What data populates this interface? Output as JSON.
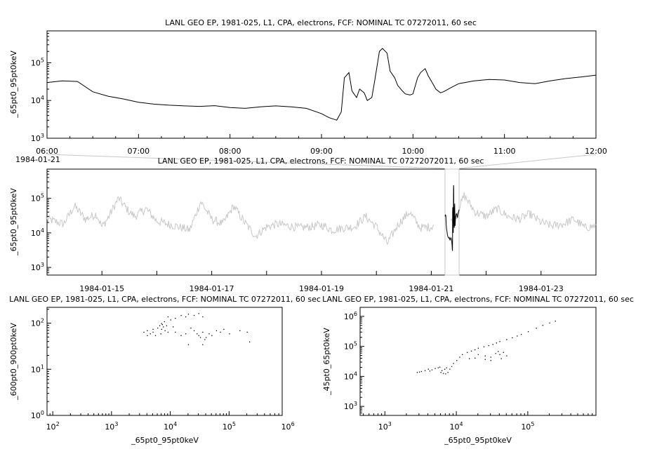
{
  "chart_data": [
    {
      "id": "top",
      "type": "line",
      "title": "LANL GEO EP, 1981-025, L1, CPA, electrons, FCF: NOMINAL TC 07272011, 60 sec",
      "ylabel": "_65pt0_95pt0keV",
      "xlabel": "",
      "x_scale": "time",
      "y_scale": "log",
      "xlim": [
        "1984-01-21 06:00",
        "1984-01-21 12:00"
      ],
      "ylim": [
        1000,
        700000
      ],
      "x_ticks": [
        "06:00",
        "07:00",
        "08:00",
        "09:00",
        "10:00",
        "11:00",
        "12:00"
      ],
      "x_tick_caption": "1984-01-21",
      "y_ticks": [
        {
          "v": 1000,
          "label": "10",
          "sup": "3"
        },
        {
          "v": 10000,
          "label": "10",
          "sup": "4"
        },
        {
          "v": 100000,
          "label": "10",
          "sup": "5"
        }
      ],
      "grid": false,
      "color": "#000000",
      "series": [
        {
          "x": [
            "06:00",
            "06:10",
            "06:20",
            "06:30",
            "06:40",
            "06:50",
            "07:00",
            "07:10",
            "07:20",
            "07:30",
            "07:40",
            "07:50",
            "08:00",
            "08:10",
            "08:20",
            "08:30",
            "08:40",
            "08:50",
            "09:00",
            "09:05",
            "09:10",
            "09:13",
            "09:15",
            "09:18",
            "09:20",
            "09:23",
            "09:25",
            "09:28",
            "09:30",
            "09:33",
            "09:35",
            "09:38",
            "09:40",
            "09:43",
            "09:45",
            "09:48",
            "09:50",
            "09:53",
            "09:55",
            "09:58",
            "10:00",
            "10:03",
            "10:05",
            "10:08",
            "10:10",
            "10:13",
            "10:15",
            "10:18",
            "10:20",
            "10:25",
            "10:30",
            "10:40",
            "10:50",
            "11:00",
            "11:10",
            "11:20",
            "11:30",
            "11:40",
            "11:50",
            "12:00"
          ],
          "values": [
            30000,
            33000,
            32000,
            17000,
            13000,
            11000,
            9000,
            8000,
            7500,
            7200,
            7000,
            7300,
            6500,
            6200,
            6800,
            7200,
            6800,
            6200,
            4500,
            3500,
            3000,
            5000,
            40000,
            55000,
            18000,
            12000,
            20000,
            16000,
            10000,
            12000,
            35000,
            200000,
            240000,
            180000,
            60000,
            40000,
            25000,
            18000,
            15000,
            14000,
            15000,
            40000,
            55000,
            70000,
            45000,
            28000,
            20000,
            16000,
            17000,
            22000,
            28000,
            33000,
            36000,
            35000,
            30000,
            28000,
            33000,
            38000,
            42000,
            47000
          ]
        }
      ]
    },
    {
      "id": "middle",
      "type": "line",
      "title": "LANL GEO EP, 1981-025, L1, CPA, electrons, FCF: NOMINAL TC 07272072011, 60 sec",
      "ylabel": "_65pt0_95pt0keV",
      "xlabel": "",
      "x_scale": "time",
      "y_scale": "log",
      "xlim": [
        "1984-01-14",
        "1984-01-24"
      ],
      "ylim": [
        600,
        700000
      ],
      "x_ticks": [
        "1984-01-15",
        "1984-01-17",
        "1984-01-19",
        "1984-01-21",
        "1984-01-23"
      ],
      "y_ticks": [
        {
          "v": 1000,
          "label": "10",
          "sup": "3"
        },
        {
          "v": 10000,
          "label": "10",
          "sup": "4"
        },
        {
          "v": 100000,
          "label": "10",
          "sup": "5"
        }
      ],
      "grid": false,
      "color": "#c8c8c8",
      "highlight_color": "#000000",
      "highlight_range": [
        "1984-01-21 06:00",
        "1984-01-21 12:00"
      ],
      "series": [
        {
          "x_days": [
            0.0,
            0.3,
            0.5,
            0.7,
            0.9,
            1.0,
            1.1,
            1.3,
            1.5,
            1.6,
            1.8,
            2.0,
            2.2,
            2.4,
            2.6,
            2.8,
            3.0,
            3.2,
            3.4,
            3.6,
            3.8,
            4.0,
            4.2,
            4.4,
            4.6,
            4.8,
            5.0,
            5.2,
            5.4,
            5.6,
            5.8,
            6.0,
            6.2,
            6.4,
            6.6,
            6.8,
            7.0,
            7.2,
            7.4,
            7.6,
            7.8,
            8.0,
            8.2,
            8.4,
            8.6,
            8.8,
            9.0,
            9.2,
            9.4,
            9.6,
            9.8,
            10.0
          ],
          "values": [
            25000,
            18000,
            60000,
            25000,
            35000,
            15000,
            25000,
            100000,
            40000,
            30000,
            50000,
            22000,
            18000,
            15000,
            12000,
            80000,
            25000,
            18000,
            60000,
            20000,
            8000,
            15000,
            18000,
            16000,
            14000,
            15000,
            17000,
            12000,
            14000,
            15000,
            30000,
            15000,
            5000,
            18000,
            40000,
            14000,
            15000,
            30000,
            20000,
            120000,
            40000,
            30000,
            50000,
            30000,
            25000,
            35000,
            20000,
            16000,
            18000,
            25000,
            14000,
            16000
          ]
        }
      ]
    },
    {
      "id": "bottom-left",
      "type": "scatter",
      "title": "LANL GEO EP, 1981-025, L1, CPA, electrons, FCF: NOMINAL TC 07272011, 60 sec",
      "xlabel": "_65pt0_95pt0keV",
      "ylabel": "_600pt0_900pt0keV",
      "x_scale": "log",
      "y_scale": "log",
      "xlim": [
        80,
        800000
      ],
      "ylim": [
        1,
        220
      ],
      "x_ticks": [
        {
          "v": 100,
          "label": "10",
          "sup": "2"
        },
        {
          "v": 1000,
          "label": "10",
          "sup": "3"
        },
        {
          "v": 10000,
          "label": "10",
          "sup": "4"
        },
        {
          "v": 100000,
          "label": "10",
          "sup": "5"
        },
        {
          "v": 1000000,
          "label": "10",
          "sup": "6"
        }
      ],
      "y_ticks": [
        {
          "v": 1,
          "label": "10",
          "sup": "0"
        },
        {
          "v": 10,
          "label": "10",
          "sup": "1"
        },
        {
          "v": 100,
          "label": "10",
          "sup": "2"
        }
      ],
      "grid": false,
      "color": "#000000",
      "points": [
        [
          3500,
          65
        ],
        [
          4000,
          70
        ],
        [
          4500,
          60
        ],
        [
          5000,
          75
        ],
        [
          5500,
          55
        ],
        [
          6000,
          80
        ],
        [
          6500,
          90
        ],
        [
          7000,
          100
        ],
        [
          7500,
          85
        ],
        [
          8000,
          70
        ],
        [
          6800,
          60
        ],
        [
          9000,
          140
        ],
        [
          10000,
          120
        ],
        [
          12000,
          130
        ],
        [
          15000,
          150
        ],
        [
          18000,
          140
        ],
        [
          20000,
          160
        ],
        [
          25000,
          150
        ],
        [
          30000,
          165
        ],
        [
          35000,
          140
        ],
        [
          22000,
          80
        ],
        [
          25000,
          70
        ],
        [
          28000,
          60
        ],
        [
          30000,
          55
        ],
        [
          32000,
          50
        ],
        [
          35000,
          65
        ],
        [
          38000,
          45
        ],
        [
          40000,
          50
        ],
        [
          45000,
          60
        ],
        [
          50000,
          55
        ],
        [
          60000,
          70
        ],
        [
          70000,
          65
        ],
        [
          80000,
          75
        ],
        [
          100000,
          60
        ],
        [
          150000,
          70
        ],
        [
          200000,
          65
        ],
        [
          220000,
          40
        ],
        [
          15000,
          55
        ],
        [
          18000,
          60
        ],
        [
          12000,
          65
        ],
        [
          20000,
          35
        ],
        [
          35000,
          35
        ],
        [
          4000,
          55
        ],
        [
          5000,
          65
        ],
        [
          7000,
          75
        ],
        [
          7200,
          95
        ],
        [
          7800,
          110
        ],
        [
          8500,
          90
        ],
        [
          9000,
          65
        ],
        [
          11000,
          85
        ]
      ]
    },
    {
      "id": "bottom-right",
      "type": "scatter",
      "title": "LANL GEO EP, 1981-025, L1, CPA, electrons, FCF: NOMINAL TC 07272011, 60 sec",
      "xlabel": "_65pt0_95pt0keV",
      "ylabel": "_45pt0_65pt0keV",
      "x_scale": "log",
      "y_scale": "log",
      "xlim": [
        450,
        900000
      ],
      "ylim": [
        500,
        2000000
      ],
      "x_ticks": [
        {
          "v": 1000,
          "label": "10",
          "sup": "3"
        },
        {
          "v": 10000,
          "label": "10",
          "sup": "4"
        },
        {
          "v": 100000,
          "label": "10",
          "sup": "5"
        }
      ],
      "y_ticks": [
        {
          "v": 1000,
          "label": "10",
          "sup": "3"
        },
        {
          "v": 10000,
          "label": "10",
          "sup": "4"
        },
        {
          "v": 100000,
          "label": "10",
          "sup": "5"
        },
        {
          "v": 1000000,
          "label": "10",
          "sup": "6"
        }
      ],
      "grid": false,
      "color": "#000000",
      "points": [
        [
          2800,
          14000
        ],
        [
          3200,
          15000
        ],
        [
          3600,
          16000
        ],
        [
          4000,
          18000
        ],
        [
          4500,
          17000
        ],
        [
          5000,
          19000
        ],
        [
          5500,
          20000
        ],
        [
          6000,
          14000
        ],
        [
          6500,
          13000
        ],
        [
          7000,
          12500
        ],
        [
          7500,
          14000
        ],
        [
          8000,
          18000
        ],
        [
          8500,
          22000
        ],
        [
          9000,
          28000
        ],
        [
          10000,
          35000
        ],
        [
          11000,
          45000
        ],
        [
          12000,
          55000
        ],
        [
          14000,
          65000
        ],
        [
          16000,
          72000
        ],
        [
          18000,
          80000
        ],
        [
          20000,
          90000
        ],
        [
          24000,
          100000
        ],
        [
          28000,
          110000
        ],
        [
          32000,
          120000
        ],
        [
          36000,
          135000
        ],
        [
          40000,
          150000
        ],
        [
          50000,
          175000
        ],
        [
          60000,
          200000
        ],
        [
          70000,
          230000
        ],
        [
          80000,
          260000
        ],
        [
          100000,
          320000
        ],
        [
          130000,
          420000
        ],
        [
          160000,
          520000
        ],
        [
          200000,
          620000
        ],
        [
          240000,
          720000
        ],
        [
          20000,
          55000
        ],
        [
          25000,
          50000
        ],
        [
          30000,
          45000
        ],
        [
          35000,
          60000
        ],
        [
          38000,
          70000
        ],
        [
          40000,
          55000
        ],
        [
          42000,
          40000
        ],
        [
          30000,
          35000
        ],
        [
          25000,
          38000
        ],
        [
          18000,
          42000
        ],
        [
          15000,
          40000
        ],
        [
          45000,
          65000
        ],
        [
          50000,
          50000
        ],
        [
          6200,
          16000
        ],
        [
          6800,
          18000
        ],
        [
          5800,
          21000
        ],
        [
          7200,
          20000
        ],
        [
          4200,
          15500
        ],
        [
          3000,
          14500
        ]
      ]
    }
  ]
}
